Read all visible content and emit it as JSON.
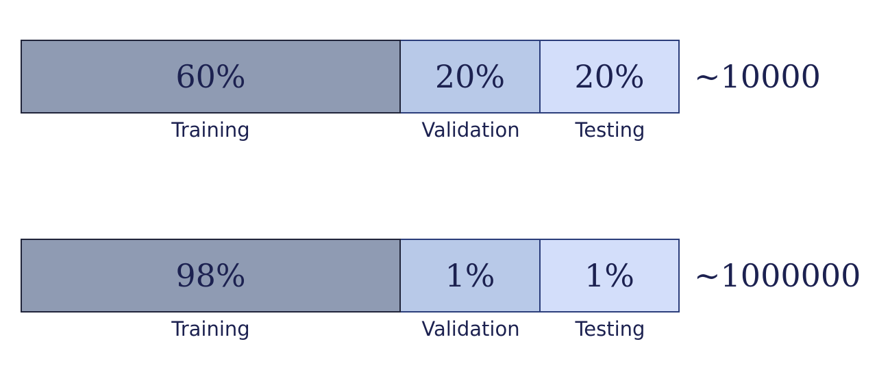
{
  "splits": [
    {
      "segments": [
        {
          "name": "Training",
          "percent_label": "60%"
        },
        {
          "name": "Validation",
          "percent_label": "20%"
        },
        {
          "name": "Testing",
          "percent_label": "20%"
        }
      ],
      "dataset_size": "~10000"
    },
    {
      "segments": [
        {
          "name": "Training",
          "percent_label": "98%"
        },
        {
          "name": "Validation",
          "percent_label": "1%"
        },
        {
          "name": "Testing",
          "percent_label": "1%"
        }
      ],
      "dataset_size": "~1000000"
    }
  ],
  "colors": {
    "training": "#8f9bb3",
    "validation": "#b8c9e8",
    "testing": "#d3defa",
    "text": "#1c2150"
  }
}
